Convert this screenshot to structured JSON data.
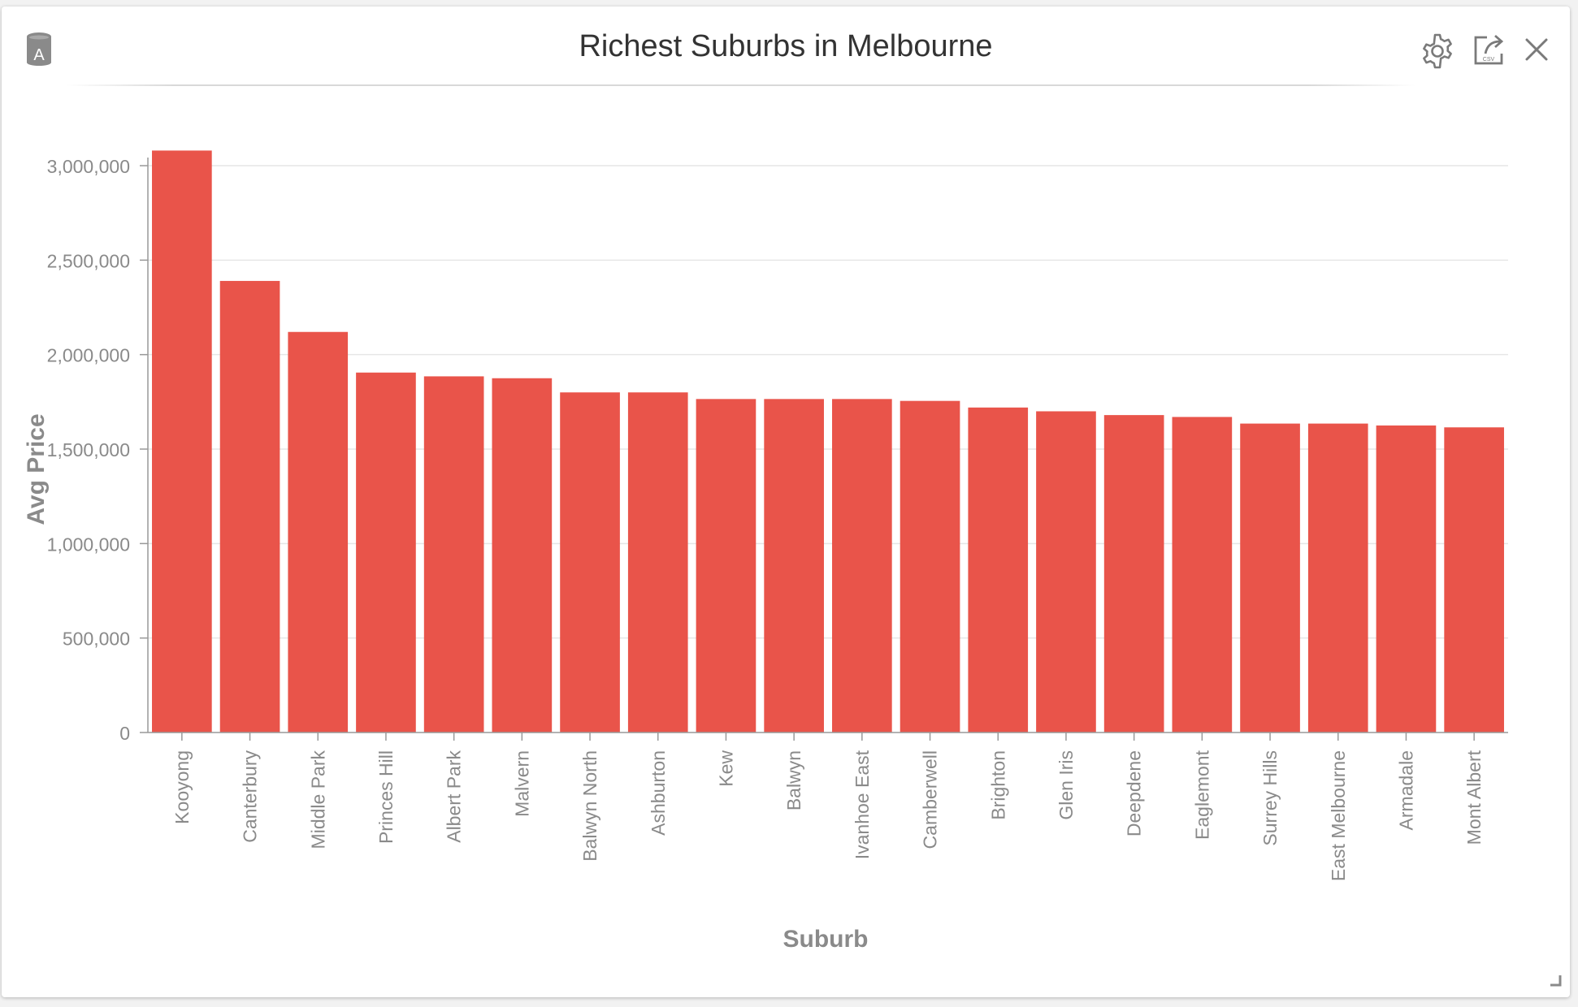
{
  "widget": {
    "title": "Richest Suburbs in Melbourne",
    "source_badge_letter": "A",
    "icons": {
      "source": "database-icon",
      "settings": "gear-icon",
      "export": "export-csv-icon",
      "close": "close-icon",
      "resize": "resize-grip-icon"
    },
    "export_icon_text": "CSV"
  },
  "colors": {
    "bar": "#E9544A",
    "axis_text": "#8a8a8a",
    "grid": "#e6e6e6",
    "icon": "#7a7a7a"
  },
  "chart_data": {
    "type": "bar",
    "title": "Richest Suburbs in Melbourne",
    "xlabel": "Suburb",
    "ylabel": "Avg Price",
    "ylim": [
      0,
      3000000
    ],
    "yticks": [
      0,
      500000,
      1000000,
      1500000,
      2000000,
      2500000,
      3000000
    ],
    "ytick_labels": [
      "0",
      "500,000",
      "1,000,000",
      "1,500,000",
      "2,000,000",
      "2,500,000",
      "3,000,000"
    ],
    "grid": true,
    "legend": "none",
    "categories": [
      "Kooyong",
      "Canterbury",
      "Middle Park",
      "Princes Hill",
      "Albert Park",
      "Malvern",
      "Balwyn North",
      "Ashburton",
      "Kew",
      "Balwyn",
      "Ivanhoe East",
      "Camberwell",
      "Brighton",
      "Glen Iris",
      "Deepdene",
      "Eaglemont",
      "Surrey Hills",
      "East Melbourne",
      "Armadale",
      "Mont Albert"
    ],
    "values": [
      3080000,
      2390000,
      2120000,
      1905000,
      1885000,
      1875000,
      1800000,
      1800000,
      1765000,
      1765000,
      1765000,
      1755000,
      1720000,
      1700000,
      1680000,
      1670000,
      1635000,
      1635000,
      1625000,
      1615000
    ]
  }
}
